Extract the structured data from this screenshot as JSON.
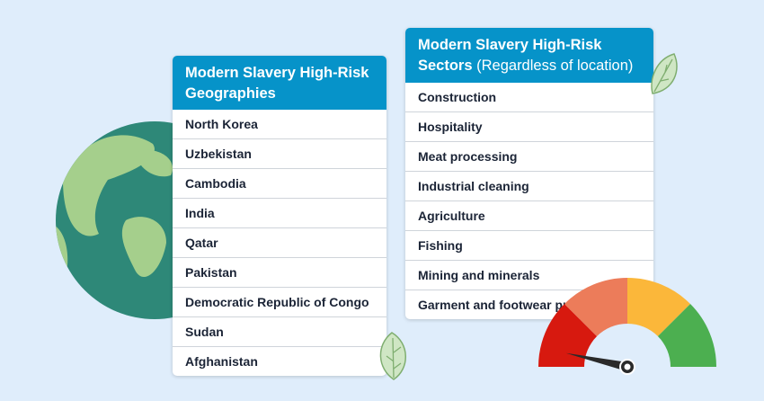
{
  "geographies": {
    "title": "Modern Slavery High-Risk Geographies",
    "items": [
      "North Korea",
      "Uzbekistan",
      "Cambodia",
      "India",
      "Qatar",
      "Pakistan",
      "Democratic Republic of Congo",
      "Sudan",
      "Afghanistan"
    ]
  },
  "sectors": {
    "title": "Modern Slavery High-Risk Sectors",
    "title_note": "(Regardless of location)",
    "items": [
      "Construction",
      "Hospitality",
      "Meat processing",
      "Industrial cleaning",
      "Agriculture",
      "Fishing",
      "Mining and minerals",
      "Garment and footwear production"
    ]
  },
  "colors": {
    "header": "#0693c9",
    "background": "#dfedfb",
    "globe_ocean": "#2e8878",
    "globe_land": "#a5cf8c"
  },
  "gauge": {
    "segments": [
      "#d7190f",
      "#ec7c5a",
      "#fbb73a",
      "#4caf50"
    ],
    "level": 0.07
  }
}
